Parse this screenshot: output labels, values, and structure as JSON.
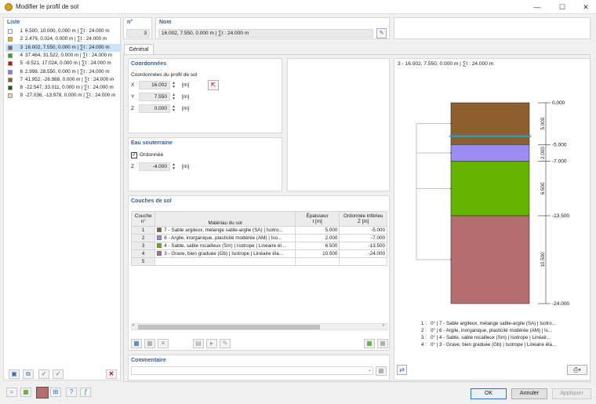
{
  "window": {
    "title": "Modifier le profil de sol",
    "minimize": "—",
    "maximize": "☐",
    "close": "✕"
  },
  "list": {
    "header": "Liste",
    "items": [
      {
        "num": "1",
        "text": "6.500, 10.000, 0.000 m | ∑t : 24.000 m",
        "color": "#e0ffff"
      },
      {
        "num": "2",
        "text": "2.479, 0.024, 0.000 m | ∑t : 24.000 m",
        "color": "#f2b600"
      },
      {
        "num": "3",
        "text": "16.002, 7.550, 0.000 m | ∑t : 24.000 m",
        "color": "#707070"
      },
      {
        "num": "4",
        "text": "37.464, 31.522, 0.000 m | ∑t : 24.000 m",
        "color": "#3a9a1a"
      },
      {
        "num": "5",
        "text": "-9.521, 17.024, 0.000 m | ∑t : 24.000 m",
        "color": "#e00000"
      },
      {
        "num": "6",
        "text": "2.998, 28.550, 0.000 m | ∑t : 24.000 m",
        "color": "#8a7af0"
      },
      {
        "num": "7",
        "text": "41.952, -26.988, 0.000 m | ∑t : 24.000 m",
        "color": "#8a5a24"
      },
      {
        "num": "8",
        "text": "-22.547, 33.011, 0.000 m | ∑t : 24.000 m",
        "color": "#1e5a1e"
      },
      {
        "num": "9",
        "text": "-27.036, -13.978, 0.000 m | ∑t : 24.000 m",
        "color": "#f0d0b0"
      }
    ],
    "selected_index": 2
  },
  "header": {
    "no_label": "n°",
    "no_value": "3",
    "name_label": "Nom",
    "name_value": "16.002, 7.550, 0.000 m | ∑t : 24.000 m"
  },
  "tab": {
    "label": "Général"
  },
  "coords": {
    "section": "Coordonnées",
    "subtitle": "Coordonnées du profil de sol",
    "x_label": "X",
    "x_value": "16.002",
    "y_label": "Y",
    "y_value": "7.550",
    "z_label": "Z",
    "z_value": "0.000",
    "unit": "[m]"
  },
  "groundwater": {
    "section": "Eau souterraine",
    "checkbox_label": "Ordonnée",
    "checked": true,
    "z_label": "Z",
    "z_value": "-4.000",
    "unit": "[m]"
  },
  "layers": {
    "section": "Couches de sol",
    "col1_top": "Couche",
    "col1_bot": "n°",
    "col2": "Matériau du sol",
    "col3_top": "Épaisseur",
    "col3_bot": "t [m]",
    "col4_top": "Ordonnée inférieu",
    "col4_bot": "Z [m]",
    "rows": [
      {
        "n": "1",
        "material": "7 - Sable argileux, mélange sable-argile (SA) | Isotro...",
        "thickness": "5.000",
        "z": "-5.000",
        "color": "#8c5f2c"
      },
      {
        "n": "2",
        "material": "6 - Argile, inorganique, plasticité modérée (AM) | Iso...",
        "thickness": "2.000",
        "z": "-7.000",
        "color": "#9a8cf2"
      },
      {
        "n": "3",
        "material": "4 - Sable, sable rocailleux (Sm) | Isotrope | Linéaire él...",
        "thickness": "6.500",
        "z": "-13.500",
        "color": "#66b300"
      },
      {
        "n": "4",
        "material": "3 - Grave, bien graduée (Gb) | Isotrope | Linéaire éla...",
        "thickness": "10.500",
        "z": "-24.000",
        "color": "#b46e6e"
      },
      {
        "n": "5",
        "material": "",
        "thickness": "",
        "z": "",
        "color": ""
      }
    ]
  },
  "comment": {
    "label": "Commentaire"
  },
  "preview": {
    "title": "3 - 16.002, 7.550, 0.000 m | ∑t : 24.000 m",
    "levels": [
      "0.000",
      "-5.000",
      "-7.000",
      "-13.500",
      "-24.000"
    ],
    "thicknesses": [
      "5.000",
      "2.000",
      "6.500",
      "10.500"
    ],
    "legend": [
      {
        "n": "1 :",
        "text": "0° | 7 - Sable argileux, mélange sable-argile (SA) | Isotro..."
      },
      {
        "n": "2 :",
        "text": "0° | 6 - Argile, inorganique, plasticité modérée (AM) | Is..."
      },
      {
        "n": "3 :",
        "text": "0° | 4 - Sable, sable rocailleux (Sm) | Isotrope | Linéair..."
      },
      {
        "n": "4 :",
        "text": "0° | 3 - Grave, bien graduée (Gb) | Isotrope | Linéaire éla..."
      }
    ]
  },
  "buttons": {
    "ok": "OK",
    "cancel": "Annuler",
    "apply": "Appliquer"
  },
  "colors": {
    "accent": "#2f5f9e",
    "water": "#1aa3e8"
  }
}
